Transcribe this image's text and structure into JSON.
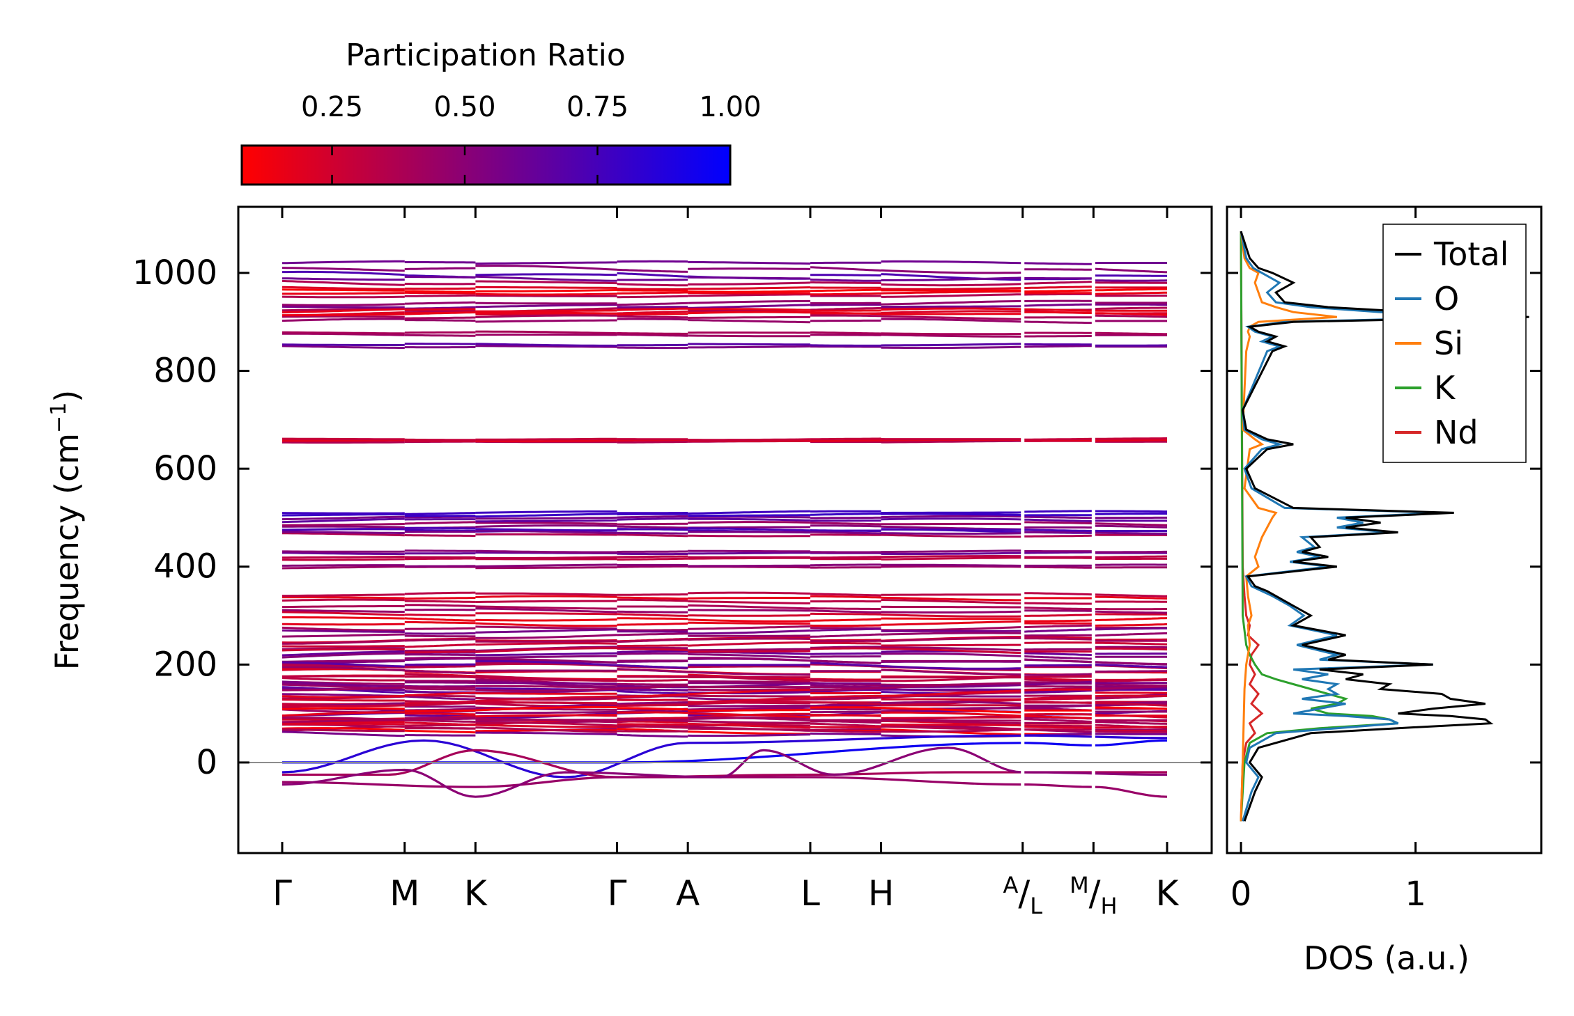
{
  "chart_data": [
    {
      "type": "line",
      "subtype": "phonon-band-structure",
      "ylabel_main": "Frequency (cm",
      "ylabel_sup": "−1",
      "ylabel_close": ")",
      "ylim": [
        -185,
        1135
      ],
      "yticks": [
        0,
        200,
        400,
        600,
        800,
        1000
      ],
      "ytick_labels": [
        "0",
        "200",
        "400",
        "600",
        "800",
        "1000"
      ],
      "kpath_labels": [
        {
          "text": "Γ",
          "pos": 0.0
        },
        {
          "text": "M",
          "pos": 1.73
        },
        {
          "text": "K",
          "pos": 2.73
        },
        {
          "text": "Γ",
          "pos": 4.73
        },
        {
          "text": "A",
          "pos": 5.73
        },
        {
          "text": "L",
          "pos": 7.46
        },
        {
          "text": "H",
          "pos": 8.46
        },
        {
          "sup": "A",
          "text": "/",
          "sub": "L",
          "pos": 10.46
        },
        {
          "sup": "M",
          "text": "/",
          "sub": "H",
          "pos": 11.46
        },
        {
          "text": "K",
          "pos": 12.5
        }
      ],
      "path_breaks": [
        10.46,
        11.46
      ],
      "zero_line": 0,
      "colorbar": {
        "title": "Participation Ratio",
        "range": [
          0.08,
          1.0
        ],
        "ticks": [
          0.25,
          0.5,
          0.75,
          1.0
        ],
        "tick_labels": [
          "0.25",
          "0.50",
          "0.75",
          "1.00"
        ],
        "color_low": "#ff0000",
        "color_high": "#0000ff"
      },
      "band_groups": [
        {
          "center": 1020,
          "count": 1,
          "amp": 6,
          "pr": 0.6
        },
        {
          "center": 1000,
          "count": 2,
          "amp": 14,
          "pr": 0.65
        },
        {
          "center": 985,
          "count": 2,
          "amp": 10,
          "pr": 0.5
        },
        {
          "center": 962,
          "count": 4,
          "amp": 6,
          "pr": 0.2
        },
        {
          "center": 928,
          "count": 4,
          "amp": 8,
          "pr": 0.4
        },
        {
          "center": 912,
          "count": 4,
          "amp": 8,
          "pr": 0.3
        },
        {
          "center": 875,
          "count": 2,
          "amp": 5,
          "pr": 0.55
        },
        {
          "center": 852,
          "count": 2,
          "amp": 5,
          "pr": 0.5
        },
        {
          "center": 658,
          "count": 3,
          "amp": 3,
          "pr": 0.35
        },
        {
          "center": 505,
          "count": 3,
          "amp": 6,
          "pr": 0.65
        },
        {
          "center": 483,
          "count": 4,
          "amp": 8,
          "pr": 0.6
        },
        {
          "center": 470,
          "count": 3,
          "amp": 6,
          "pr": 0.55
        },
        {
          "center": 430,
          "count": 2,
          "amp": 4,
          "pr": 0.45
        },
        {
          "center": 418,
          "count": 2,
          "amp": 4,
          "pr": 0.45
        },
        {
          "center": 400,
          "count": 2,
          "amp": 4,
          "pr": 0.35
        },
        {
          "center": 335,
          "count": 3,
          "amp": 8,
          "pr": 0.35
        },
        {
          "center": 310,
          "count": 3,
          "amp": 8,
          "pr": 0.3
        },
        {
          "center": 285,
          "count": 3,
          "amp": 10,
          "pr": 0.3
        },
        {
          "center": 260,
          "count": 3,
          "amp": 10,
          "pr": 0.4
        },
        {
          "center": 235,
          "count": 4,
          "amp": 10,
          "pr": 0.45
        },
        {
          "center": 205,
          "count": 5,
          "amp": 12,
          "pr": 0.4
        },
        {
          "center": 180,
          "count": 6,
          "amp": 12,
          "pr": 0.3
        },
        {
          "center": 155,
          "count": 8,
          "amp": 14,
          "pr": 0.5
        },
        {
          "center": 130,
          "count": 8,
          "amp": 14,
          "pr": 0.45
        },
        {
          "center": 110,
          "count": 8,
          "amp": 14,
          "pr": 0.35
        },
        {
          "center": 90,
          "count": 6,
          "amp": 12,
          "pr": 0.25
        },
        {
          "center": 72,
          "count": 4,
          "amp": 10,
          "pr": 0.4
        }
      ],
      "low_branches": [
        {
          "points": [
            [
              0,
              0
            ],
            [
              4.73,
              0
            ],
            [
              10.46,
              40
            ],
            [
              11.46,
              35
            ],
            [
              12.5,
              45
            ]
          ],
          "pr": 0.95
        },
        {
          "points": [
            [
              0,
              -20
            ],
            [
              2.0,
              45
            ],
            [
              4.0,
              -30
            ],
            [
              5.73,
              40
            ],
            [
              10.46,
              55
            ],
            [
              12.5,
              50
            ]
          ],
          "pr": 0.85
        },
        {
          "points": [
            [
              0,
              -25
            ],
            [
              1.5,
              -25
            ],
            [
              2.73,
              25
            ],
            [
              4.73,
              -30
            ],
            [
              7.46,
              -25
            ],
            [
              9.5,
              -20
            ],
            [
              12.5,
              -20
            ]
          ],
          "pr": 0.4
        },
        {
          "points": [
            [
              0,
              -40
            ],
            [
              2.73,
              -50
            ],
            [
              4.73,
              -30
            ],
            [
              7.46,
              -30
            ],
            [
              10.46,
              -45
            ],
            [
              11.46,
              -50
            ],
            [
              12.5,
              -70
            ]
          ],
          "pr": 0.45
        },
        {
          "points": [
            [
              0,
              -45
            ],
            [
              1.73,
              -15
            ],
            [
              2.73,
              -70
            ],
            [
              4.0,
              -20
            ],
            [
              6.2,
              -30
            ],
            [
              6.8,
              25
            ],
            [
              7.8,
              -25
            ],
            [
              9.4,
              30
            ],
            [
              10.46,
              -20
            ],
            [
              12.5,
              -25
            ]
          ],
          "pr": 0.5
        }
      ]
    },
    {
      "type": "line",
      "subtype": "density-of-states",
      "xlabel": "DOS (a.u.)",
      "xlim": [
        -0.08,
        1.72
      ],
      "xticks": [
        0,
        1
      ],
      "xtick_labels": [
        "0",
        "1"
      ],
      "ylim": [
        -185,
        1135
      ],
      "legend_position": "top-right",
      "series": [
        {
          "name": "Total",
          "color": "#000000",
          "y": [
            -120,
            -60,
            -30,
            0,
            30,
            60,
            70,
            80,
            88,
            95,
            100,
            110,
            120,
            130,
            140,
            150,
            160,
            170,
            180,
            190,
            200,
            210,
            220,
            240,
            260,
            280,
            300,
            320,
            340,
            350,
            360,
            380,
            400,
            410,
            420,
            430,
            440,
            460,
            470,
            480,
            490,
            500,
            510,
            520,
            560,
            600,
            640,
            650,
            660,
            680,
            720,
            840,
            850,
            860,
            870,
            880,
            890,
            900,
            910,
            920,
            930,
            940,
            960,
            980,
            1000,
            1010,
            1030,
            1085
          ],
          "x": [
            0.02,
            0.08,
            0.12,
            0.05,
            0.1,
            0.4,
            0.9,
            1.43,
            1.4,
            1.2,
            0.9,
            1.1,
            1.4,
            1.2,
            1.15,
            0.8,
            0.85,
            0.6,
            0.7,
            0.45,
            1.1,
            0.5,
            0.6,
            0.35,
            0.6,
            0.3,
            0.4,
            0.3,
            0.2,
            0.15,
            0.08,
            0.04,
            0.55,
            0.3,
            0.5,
            0.35,
            0.45,
            0.4,
            0.9,
            0.6,
            0.8,
            0.6,
            1.22,
            0.3,
            0.08,
            0.03,
            0.15,
            0.3,
            0.15,
            0.03,
            0.01,
            0.18,
            0.25,
            0.15,
            0.2,
            0.1,
            0.05,
            0.3,
            1.65,
            1.0,
            0.5,
            0.25,
            0.2,
            0.3,
            0.18,
            0.1,
            0.05,
            0.0
          ]
        },
        {
          "name": "O",
          "color": "#1f77b4",
          "y": [
            -120,
            -60,
            -30,
            0,
            30,
            60,
            70,
            80,
            88,
            95,
            100,
            110,
            120,
            130,
            140,
            150,
            160,
            170,
            180,
            190,
            200,
            210,
            220,
            240,
            260,
            280,
            300,
            320,
            340,
            350,
            360,
            380,
            400,
            410,
            420,
            430,
            440,
            460,
            470,
            480,
            490,
            500,
            510,
            520,
            560,
            600,
            640,
            650,
            660,
            680,
            720,
            840,
            850,
            860,
            870,
            880,
            890,
            900,
            910,
            920,
            930,
            940,
            960,
            980,
            1000,
            1010,
            1030,
            1085
          ],
          "x": [
            0.01,
            0.06,
            0.1,
            0.03,
            0.05,
            0.2,
            0.55,
            0.9,
            0.85,
            0.6,
            0.3,
            0.45,
            0.6,
            0.35,
            0.55,
            0.5,
            0.55,
            0.35,
            0.5,
            0.3,
            1.1,
            0.45,
            0.55,
            0.32,
            0.55,
            0.28,
            0.36,
            0.28,
            0.18,
            0.12,
            0.06,
            0.03,
            0.5,
            0.28,
            0.45,
            0.32,
            0.42,
            0.35,
            0.85,
            0.55,
            0.7,
            0.55,
            1.15,
            0.25,
            0.06,
            0.02,
            0.12,
            0.22,
            0.12,
            0.02,
            0.01,
            0.15,
            0.22,
            0.12,
            0.18,
            0.08,
            0.04,
            0.25,
            1.4,
            0.8,
            0.4,
            0.2,
            0.15,
            0.22,
            0.12,
            0.07,
            0.03,
            0.0
          ]
        },
        {
          "name": "Si",
          "color": "#ff7f0e",
          "y": [
            -120,
            0,
            150,
            200,
            240,
            280,
            300,
            340,
            380,
            400,
            420,
            440,
            460,
            480,
            500,
            510,
            520,
            560,
            640,
            650,
            660,
            680,
            840,
            870,
            880,
            890,
            900,
            910,
            920,
            930,
            940,
            960,
            980,
            1000,
            1010,
            1030,
            1085
          ],
          "x": [
            0.0,
            0.01,
            0.02,
            0.03,
            0.05,
            0.04,
            0.06,
            0.04,
            0.03,
            0.1,
            0.08,
            0.1,
            0.12,
            0.15,
            0.18,
            0.2,
            0.1,
            0.02,
            0.05,
            0.12,
            0.08,
            0.01,
            0.03,
            0.05,
            0.04,
            0.05,
            0.1,
            0.55,
            0.3,
            0.2,
            0.12,
            0.1,
            0.08,
            0.1,
            0.05,
            0.02,
            0.0
          ]
        },
        {
          "name": "K",
          "color": "#2ca02c",
          "y": [
            -120,
            -60,
            0,
            40,
            60,
            70,
            80,
            88,
            95,
            100,
            110,
            120,
            130,
            140,
            150,
            160,
            170,
            180,
            200,
            220,
            240,
            300,
            1085
          ],
          "x": [
            0.0,
            0.01,
            0.02,
            0.05,
            0.15,
            0.45,
            0.9,
            0.85,
            0.75,
            0.5,
            0.4,
            0.55,
            0.6,
            0.5,
            0.4,
            0.3,
            0.2,
            0.12,
            0.08,
            0.05,
            0.03,
            0.01,
            0.0
          ]
        },
        {
          "name": "Nd",
          "color": "#d62728",
          "y": [
            -120,
            0,
            40,
            60,
            80,
            100,
            120,
            140,
            160,
            180,
            200,
            220,
            240,
            260,
            280,
            300,
            340,
            400,
            1085
          ],
          "x": [
            0.0,
            0.01,
            0.03,
            0.08,
            0.05,
            0.12,
            0.06,
            0.1,
            0.05,
            0.08,
            0.05,
            0.06,
            0.1,
            0.04,
            0.05,
            0.03,
            0.02,
            0.01,
            0.0
          ]
        }
      ]
    }
  ]
}
